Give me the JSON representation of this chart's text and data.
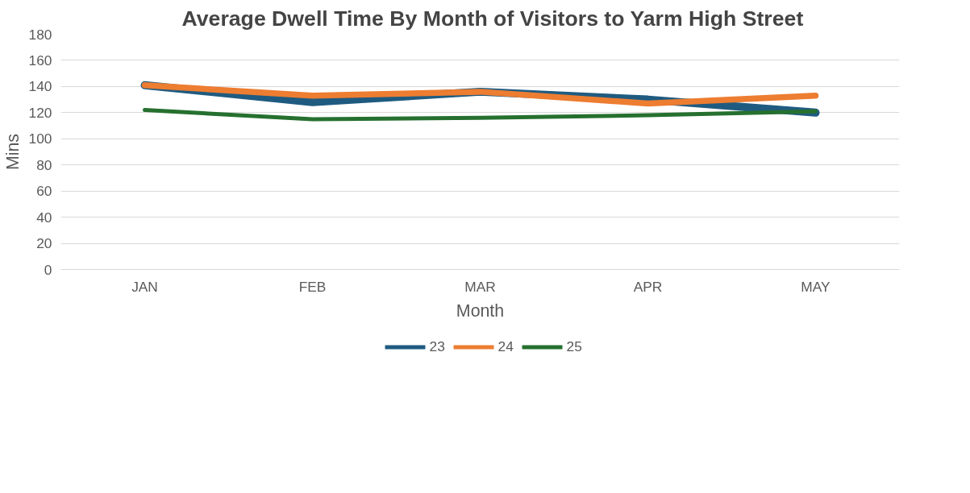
{
  "chart_data": {
    "type": "line",
    "title": "Average Dwell Time By Month of Visitors to Yarm High Street",
    "xlabel": "Month",
    "ylabel": "Mins",
    "categories": [
      "JAN",
      "FEB",
      "MAR",
      "APR",
      "MAY"
    ],
    "series": [
      {
        "name": "23",
        "color": "#1f5b80",
        "values": [
          141,
          128,
          136,
          130,
          120
        ]
      },
      {
        "name": "24",
        "color": "#ed7d31",
        "values": [
          141,
          133,
          136,
          127,
          133
        ]
      },
      {
        "name": "25",
        "color": "#26702f",
        "values": [
          122,
          115,
          116,
          118,
          121
        ]
      }
    ],
    "ylim": [
      0,
      180
    ],
    "yticks": [
      0,
      20,
      40,
      60,
      80,
      100,
      120,
      140,
      160,
      180
    ],
    "grid": "y",
    "legend": "bottom",
    "marker": "none",
    "line_style": "solid"
  }
}
